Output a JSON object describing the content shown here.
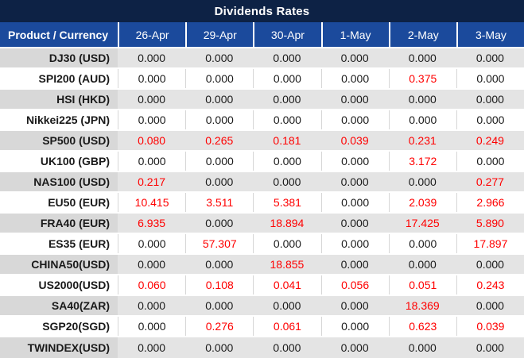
{
  "title": "Dividends Rates",
  "colors": {
    "title_bg": "#0d2245",
    "header_bg": "#1b4a9c",
    "stripe_product_bg": "#d8d8d8",
    "stripe_value_bg": "#e4e4e4",
    "text_black": "#1a1a1a",
    "value_red": "#ff0000"
  },
  "table": {
    "product_column_header": "Product / Currency",
    "date_columns": [
      "26-Apr",
      "29-Apr",
      "30-Apr",
      "1-May",
      "2-May",
      "3-May"
    ],
    "zero_value": "0.000",
    "rows": [
      {
        "product": "DJ30 (USD)",
        "values": [
          "0.000",
          "0.000",
          "0.000",
          "0.000",
          "0.000",
          "0.000"
        ]
      },
      {
        "product": "SPI200 (AUD)",
        "values": [
          "0.000",
          "0.000",
          "0.000",
          "0.000",
          "0.375",
          "0.000"
        ]
      },
      {
        "product": "HSI (HKD)",
        "values": [
          "0.000",
          "0.000",
          "0.000",
          "0.000",
          "0.000",
          "0.000"
        ]
      },
      {
        "product": "Nikkei225 (JPN)",
        "values": [
          "0.000",
          "0.000",
          "0.000",
          "0.000",
          "0.000",
          "0.000"
        ]
      },
      {
        "product": "SP500 (USD)",
        "values": [
          "0.080",
          "0.265",
          "0.181",
          "0.039",
          "0.231",
          "0.249"
        ]
      },
      {
        "product": "UK100 (GBP)",
        "values": [
          "0.000",
          "0.000",
          "0.000",
          "0.000",
          "3.172",
          "0.000"
        ]
      },
      {
        "product": "NAS100 (USD)",
        "values": [
          "0.217",
          "0.000",
          "0.000",
          "0.000",
          "0.000",
          "0.277"
        ]
      },
      {
        "product": "EU50 (EUR)",
        "values": [
          "10.415",
          "3.511",
          "5.381",
          "0.000",
          "2.039",
          "2.966"
        ]
      },
      {
        "product": "FRA40 (EUR)",
        "values": [
          "6.935",
          "0.000",
          "18.894",
          "0.000",
          "17.425",
          "5.890"
        ]
      },
      {
        "product": "ES35 (EUR)",
        "values": [
          "0.000",
          "57.307",
          "0.000",
          "0.000",
          "0.000",
          "17.897"
        ]
      },
      {
        "product": "CHINA50(USD)",
        "values": [
          "0.000",
          "0.000",
          "18.855",
          "0.000",
          "0.000",
          "0.000"
        ]
      },
      {
        "product": "US2000(USD)",
        "values": [
          "0.060",
          "0.108",
          "0.041",
          "0.056",
          "0.051",
          "0.243"
        ]
      },
      {
        "product": "SA40(ZAR)",
        "values": [
          "0.000",
          "0.000",
          "0.000",
          "0.000",
          "18.369",
          "0.000"
        ]
      },
      {
        "product": "SGP20(SGD)",
        "values": [
          "0.000",
          "0.276",
          "0.061",
          "0.000",
          "0.623",
          "0.039"
        ]
      },
      {
        "product": "TWINDEX(USD)",
        "values": [
          "0.000",
          "0.000",
          "0.000",
          "0.000",
          "0.000",
          "0.000"
        ]
      }
    ]
  }
}
